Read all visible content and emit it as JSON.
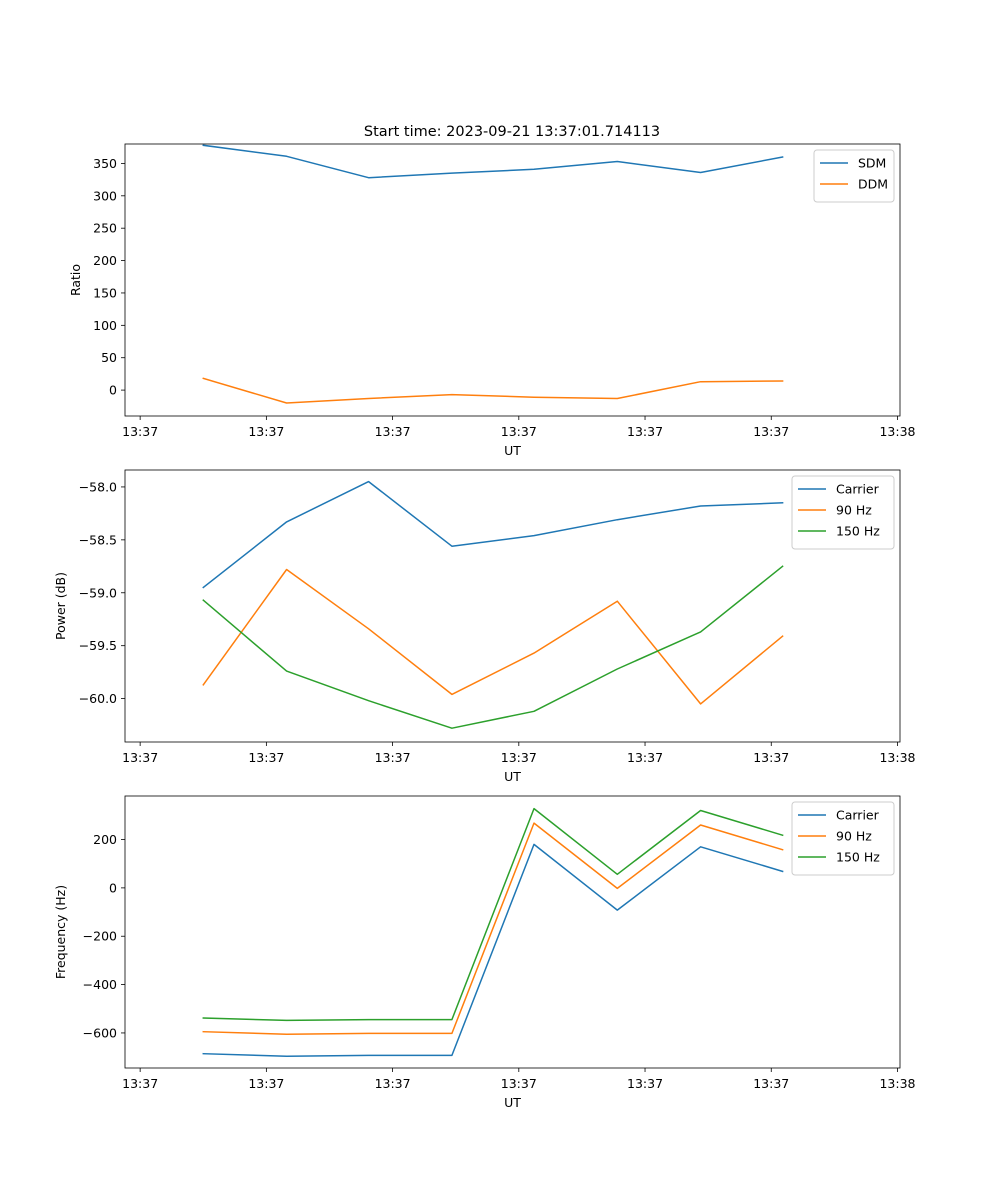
{
  "chart_data": [
    {
      "type": "line",
      "title": "Start time: 2023-09-21 13:37:01.714113",
      "xlabel": "UT",
      "ylabel": "Ratio",
      "x_tick_labels": [
        "13:37",
        "13:37",
        "13:37",
        "13:37",
        "13:37",
        "13:37",
        "13:38"
      ],
      "y_ticks": [
        0,
        50,
        100,
        150,
        200,
        250,
        300,
        350
      ],
      "y_tick_labels": [
        "0",
        "50",
        "100",
        "150",
        "200",
        "250",
        "300",
        "350"
      ],
      "ylim": [
        -40,
        380
      ],
      "xlim": [
        -0.12,
        6.02
      ],
      "x": [
        0.5,
        1.16,
        1.81,
        2.47,
        3.12,
        3.78,
        4.44,
        5.09
      ],
      "legend_position": "top-right",
      "series": [
        {
          "name": "SDM",
          "color": "#1f77b4",
          "values": [
            378,
            361,
            328,
            335,
            341,
            353,
            336,
            360
          ]
        },
        {
          "name": "DDM",
          "color": "#ff7f0e",
          "values": [
            18,
            -20,
            -13,
            -7,
            -11,
            -13,
            13,
            14
          ]
        }
      ]
    },
    {
      "type": "line",
      "title": "",
      "xlabel": "UT",
      "ylabel": "Power (dB)",
      "x_tick_labels": [
        "13:37",
        "13:37",
        "13:37",
        "13:37",
        "13:37",
        "13:37",
        "13:38"
      ],
      "y_ticks": [
        -60.0,
        -59.5,
        -59.0,
        -58.5,
        -58.0
      ],
      "y_tick_labels": [
        "−60.0",
        "−59.5",
        "−59.0",
        "−58.5",
        "−58.0"
      ],
      "ylim": [
        -60.41,
        -57.84
      ],
      "xlim": [
        -0.12,
        6.02
      ],
      "x": [
        0.5,
        1.16,
        1.81,
        2.47,
        3.12,
        3.78,
        4.44,
        5.09
      ],
      "legend_position": "top-right",
      "series": [
        {
          "name": "Carrier",
          "color": "#1f77b4",
          "values": [
            -58.95,
            -58.33,
            -57.95,
            -58.56,
            -58.46,
            -58.31,
            -58.18,
            -58.15
          ]
        },
        {
          "name": "90 Hz",
          "color": "#ff7f0e",
          "values": [
            -59.87,
            -58.78,
            -59.34,
            -59.96,
            -59.57,
            -59.08,
            -60.05,
            -59.41
          ]
        },
        {
          "name": "150 Hz",
          "color": "#2ca02c",
          "values": [
            -59.07,
            -59.74,
            -60.02,
            -60.28,
            -60.12,
            -59.72,
            -59.37,
            -58.75
          ]
        }
      ]
    },
    {
      "type": "line",
      "title": "",
      "xlabel": "UT",
      "ylabel": "Frequency (Hz)",
      "x_tick_labels": [
        "13:37",
        "13:37",
        "13:37",
        "13:37",
        "13:37",
        "13:37",
        "13:38"
      ],
      "y_ticks": [
        -600,
        -400,
        -200,
        0,
        200
      ],
      "y_tick_labels": [
        "−600",
        "−400",
        "−200",
        "0",
        "200"
      ],
      "ylim": [
        -745,
        380
      ],
      "xlim": [
        -0.12,
        6.02
      ],
      "x": [
        0.5,
        1.16,
        1.81,
        2.47,
        3.12,
        3.78,
        4.44,
        5.09
      ],
      "legend_position": "top-right",
      "series": [
        {
          "name": "Carrier",
          "color": "#1f77b4",
          "values": [
            -686,
            -696,
            -693,
            -693,
            180,
            -92,
            170,
            68
          ]
        },
        {
          "name": "90 Hz",
          "color": "#ff7f0e",
          "values": [
            -595,
            -605,
            -602,
            -602,
            268,
            -2,
            260,
            158
          ]
        },
        {
          "name": "150 Hz",
          "color": "#2ca02c",
          "values": [
            -538,
            -548,
            -545,
            -545,
            328,
            56,
            320,
            218
          ]
        }
      ]
    }
  ]
}
